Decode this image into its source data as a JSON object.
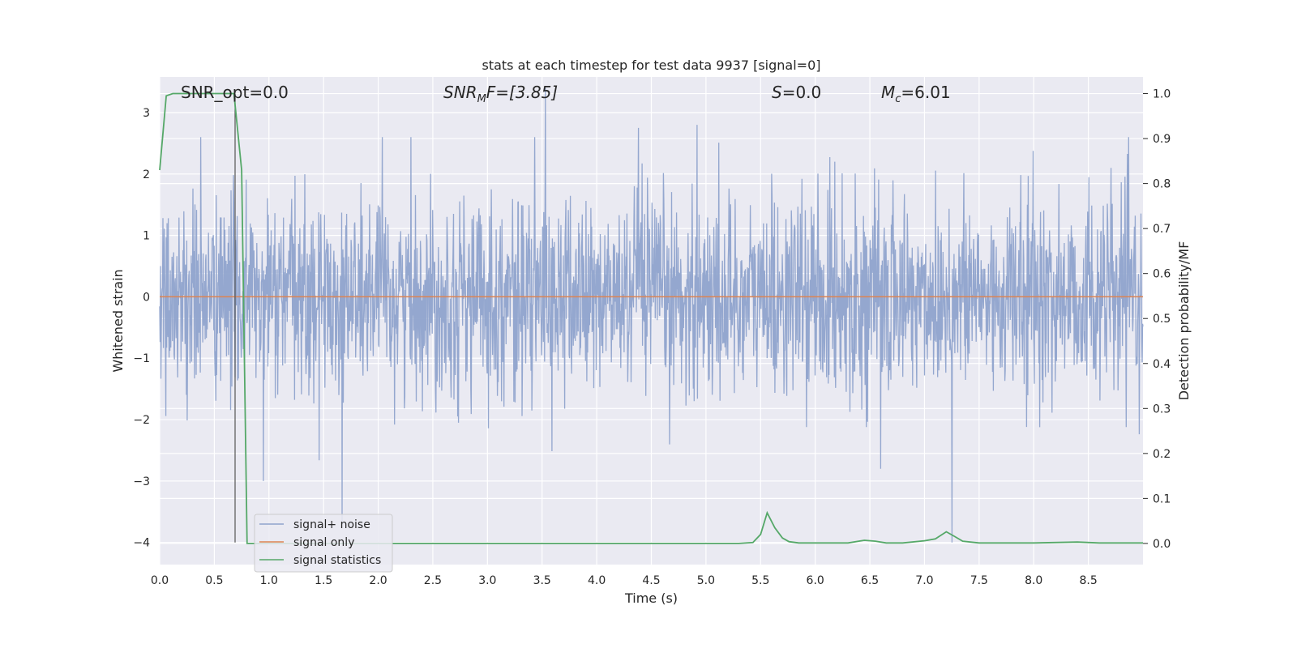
{
  "chart_data": {
    "type": "line",
    "title": "stats at each timestep for test data 9937 [signal=0]",
    "xlabel": "Time (s)",
    "ylabel": "Whitened strain",
    "ylabel_right": "Detection probability/MF",
    "xlim": [
      0.0,
      9.0
    ],
    "ylim": [
      -4.36,
      3.58
    ],
    "ylim_right": [
      -0.047,
      1.037
    ],
    "x_ticks": [
      0.0,
      0.5,
      1.0,
      1.5,
      2.0,
      2.5,
      3.0,
      3.5,
      4.0,
      4.5,
      5.0,
      5.5,
      6.0,
      6.5,
      7.0,
      7.5,
      8.0,
      8.5
    ],
    "x_tick_labels": [
      "0.0",
      "0.5",
      "1.0",
      "1.5",
      "2.0",
      "2.5",
      "3.0",
      "3.5",
      "4.0",
      "4.5",
      "5.0",
      "5.5",
      "6.0",
      "6.5",
      "7.0",
      "7.5",
      "8.0",
      "8.5"
    ],
    "y_ticks": [
      -4,
      -3,
      -2,
      -1,
      0,
      1,
      2,
      3
    ],
    "y_tick_labels": [
      "−4",
      "−3",
      "−2",
      "−1",
      "0",
      "1",
      "2",
      "3"
    ],
    "y_right_ticks": [
      0.0,
      0.1,
      0.2,
      0.3,
      0.4,
      0.5,
      0.6,
      0.7,
      0.8,
      0.9,
      1.0
    ],
    "y_right_tick_labels": [
      "0.0",
      "0.1",
      "0.2",
      "0.3",
      "0.4",
      "0.5",
      "0.6",
      "0.7",
      "0.8",
      "0.9",
      "1.0"
    ],
    "grid": true,
    "legend_position": "lower-left",
    "annotations": {
      "snr_opt": "SNR_opt=0.0",
      "snr_mf_base": "SNR",
      "snr_mf_sub": "M",
      "snr_mf_rest": "F=[3.85]",
      "s_base": "S",
      "s_rest": "=0.0",
      "mc_base": "M",
      "mc_sub": "c",
      "mc_rest": "=6.01"
    },
    "vertical_marker_x": 0.69,
    "series": [
      {
        "name": "signal+ noise",
        "color": "#8fa3cc",
        "axis": "left",
        "description_kind": "noise",
        "noise_std": 0.8,
        "x_range": [
          0.0,
          9.0
        ],
        "notable_peaks": [
          [
            3.53,
            3.4
          ],
          [
            1.67,
            -3.7
          ],
          [
            7.25,
            -4.0
          ],
          [
            0.95,
            -3.0
          ],
          [
            6.6,
            -2.8
          ],
          [
            4.92,
            2.8
          ],
          [
            4.38,
            2.75
          ]
        ]
      },
      {
        "name": "signal only",
        "color": "#dd8452",
        "axis": "left",
        "x": [
          0.0,
          9.0
        ],
        "y": [
          0.0,
          0.0
        ]
      },
      {
        "name": "signal statistics",
        "color": "#55a868",
        "axis": "right",
        "x": [
          0.0,
          0.06,
          0.12,
          0.2,
          0.3,
          0.4,
          0.5,
          0.6,
          0.68,
          0.75,
          0.8,
          0.9,
          1.0,
          1.5,
          2.0,
          3.0,
          4.0,
          5.0,
          5.3,
          5.43,
          5.5,
          5.56,
          5.63,
          5.7,
          5.76,
          5.85,
          6.0,
          6.3,
          6.45,
          6.55,
          6.65,
          6.8,
          7.0,
          7.1,
          7.2,
          7.28,
          7.35,
          7.5,
          8.0,
          8.4,
          8.6,
          9.0
        ],
        "y": [
          0.83,
          0.995,
          1.0,
          1.0,
          1.0,
          1.0,
          1.0,
          1.0,
          1.0,
          0.83,
          0.0,
          0.0,
          0.0,
          0.0,
          0.0,
          0.0,
          0.0,
          0.0,
          0.0,
          0.002,
          0.02,
          0.068,
          0.035,
          0.012,
          0.004,
          0.001,
          0.001,
          0.001,
          0.007,
          0.005,
          0.001,
          0.001,
          0.006,
          0.01,
          0.026,
          0.015,
          0.005,
          0.001,
          0.001,
          0.003,
          0.001,
          0.001
        ]
      }
    ]
  }
}
